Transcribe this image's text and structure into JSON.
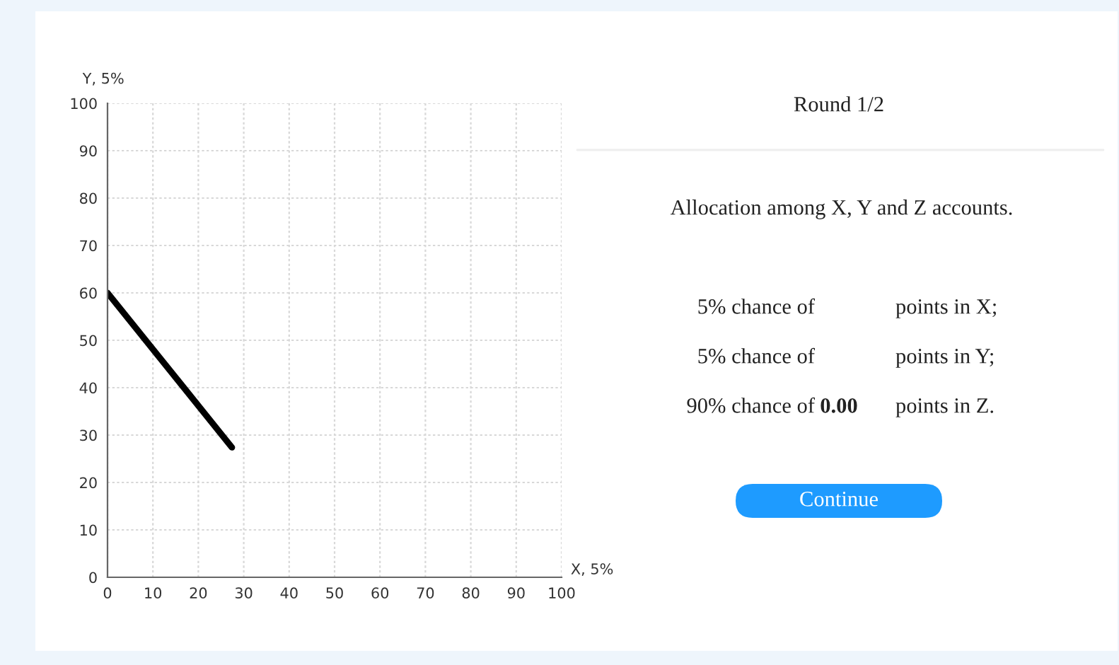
{
  "chart_data": [
    {
      "type": "line",
      "xlabel": "X, 5%",
      "ylabel": "Y, 5%",
      "series": [
        {
          "color": "#000000",
          "x": [
            0,
            27.4
          ],
          "values": [
            60,
            27.4
          ]
        }
      ],
      "xlim": [
        0,
        100
      ],
      "ylim": [
        0,
        100
      ],
      "xticks": [
        0,
        10,
        20,
        30,
        40,
        50,
        60,
        70,
        80,
        90,
        100
      ],
      "yticks": [
        0,
        10,
        20,
        30,
        40,
        50,
        60,
        70,
        80,
        90,
        100
      ],
      "grid": true
    },
    {
      "type": "other",
      "title": "Round 1/2",
      "annotations": [
        "Allocation among X, Y and Z accounts.",
        "5% chance of",
        "points in X;",
        "5% chance of",
        "points in Y;",
        "90% chance of",
        "0.00",
        "points in Z.",
        "Continue"
      ]
    }
  ]
}
